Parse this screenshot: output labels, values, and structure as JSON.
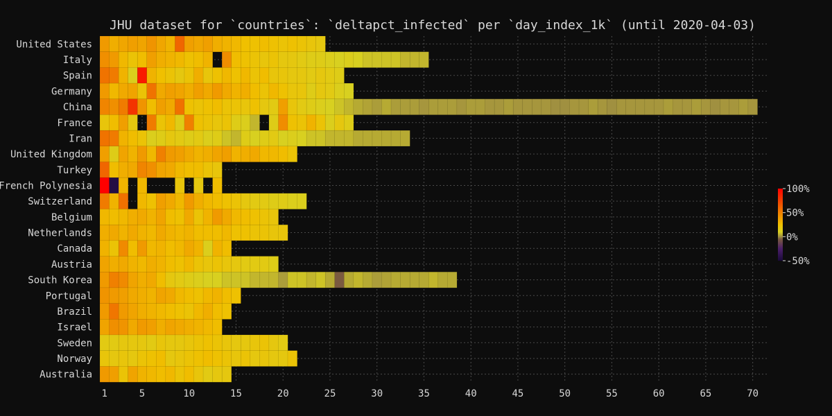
{
  "chart_data": {
    "type": "heatmap",
    "title": "JHU dataset for `countries`: `deltapct_infected` per `day_index_1k` (until 2020-04-03)",
    "xlabel": "",
    "ylabel": "",
    "x_range": [
      1,
      71
    ],
    "x_ticks": [
      "1",
      "5",
      "10",
      "15",
      "20",
      "25",
      "30",
      "35",
      "40",
      "45",
      "50",
      "55",
      "60",
      "65",
      "70"
    ],
    "grid": true,
    "colorbar": {
      "min": -50,
      "max": 100,
      "ticks": [
        "100%",
        "50%",
        "0%",
        "-50%"
      ],
      "tick_values": [
        100,
        50,
        0,
        -50
      ],
      "stops": [
        {
          "v": -50,
          "color": "#1a0a3a"
        },
        {
          "v": -25,
          "color": "#4b1f6a"
        },
        {
          "v": -5,
          "color": "#7a5a40"
        },
        {
          "v": 0,
          "color": "#a09040"
        },
        {
          "v": 10,
          "color": "#d8d020"
        },
        {
          "v": 25,
          "color": "#f0c000"
        },
        {
          "v": 50,
          "color": "#f08000"
        },
        {
          "v": 75,
          "color": "#f04000"
        },
        {
          "v": 100,
          "color": "#ff0000"
        }
      ]
    },
    "rows": [
      {
        "country": "United States",
        "values": [
          40,
          32,
          35,
          38,
          36,
          42,
          35,
          30,
          60,
          38,
          35,
          38,
          32,
          30,
          28,
          25,
          24,
          26,
          24,
          22,
          24,
          22,
          20,
          18
        ]
      },
      {
        "country": "Italy",
        "values": [
          44,
          40,
          28,
          22,
          26,
          38,
          32,
          30,
          28,
          24,
          26,
          30,
          null,
          45,
          26,
          24,
          22,
          20,
          22,
          18,
          18,
          16,
          14,
          14,
          12,
          10,
          12,
          10,
          8,
          8,
          8,
          8,
          6,
          6,
          6
        ]
      },
      {
        "country": "Spain",
        "values": [
          55,
          52,
          30,
          12,
          90,
          30,
          25,
          22,
          18,
          22,
          32,
          20,
          24,
          28,
          24,
          28,
          22,
          26,
          20,
          20,
          18,
          18,
          16,
          18,
          16,
          14
        ]
      },
      {
        "country": "Germany",
        "values": [
          40,
          28,
          34,
          36,
          22,
          55,
          34,
          38,
          36,
          32,
          38,
          34,
          40,
          34,
          30,
          32,
          26,
          22,
          28,
          24,
          20,
          20,
          14,
          18,
          16,
          12,
          10
        ]
      },
      {
        "country": "China",
        "values": [
          48,
          44,
          52,
          80,
          42,
          26,
          38,
          34,
          56,
          24,
          22,
          24,
          26,
          22,
          22,
          20,
          24,
          18,
          16,
          38,
          20,
          16,
          14,
          12,
          10,
          8,
          6,
          4,
          3,
          2,
          4,
          2,
          2,
          2,
          1,
          2,
          2,
          2,
          1,
          2,
          2,
          1,
          1,
          2,
          1,
          1,
          1,
          1,
          0,
          0,
          1,
          1,
          2,
          1,
          0,
          1,
          1,
          1,
          1,
          1,
          2,
          1,
          1,
          2,
          1,
          0,
          1,
          1,
          2,
          1
        ]
      },
      {
        "country": "France",
        "values": [
          20,
          26,
          38,
          18,
          null,
          52,
          22,
          28,
          14,
          50,
          24,
          22,
          20,
          22,
          14,
          12,
          6,
          null,
          14,
          45,
          24,
          22,
          30,
          22,
          12,
          18,
          14
        ]
      },
      {
        "country": "Iran",
        "values": [
          55,
          52,
          30,
          26,
          22,
          12,
          14,
          18,
          16,
          14,
          16,
          12,
          14,
          8,
          6,
          14,
          10,
          14,
          16,
          10,
          12,
          10,
          8,
          8,
          6,
          6,
          6,
          4,
          4,
          4,
          4,
          4,
          4
        ]
      },
      {
        "country": "United Kingdom",
        "values": [
          38,
          14,
          36,
          30,
          40,
          28,
          50,
          40,
          38,
          34,
          30,
          32,
          36,
          38,
          30,
          32,
          34,
          28,
          28,
          26,
          22
        ]
      },
      {
        "country": "Turkey",
        "values": [
          60,
          26,
          32,
          34,
          48,
          44,
          36,
          34,
          28,
          26,
          26,
          22,
          20
        ]
      },
      {
        "country": "French Polynesia",
        "values": [
          100,
          -45,
          30,
          null,
          28,
          null,
          null,
          null,
          20,
          null,
          18,
          null,
          26
        ]
      },
      {
        "country": "Switzerland",
        "values": [
          52,
          30,
          56,
          null,
          28,
          24,
          38,
          34,
          28,
          40,
          32,
          28,
          26,
          24,
          22,
          18,
          16,
          16,
          14,
          14,
          12,
          12
        ]
      },
      {
        "country": "Belgium",
        "values": [
          28,
          26,
          28,
          32,
          34,
          30,
          36,
          26,
          24,
          34,
          22,
          30,
          40,
          34,
          28,
          26,
          24,
          22,
          20
        ]
      },
      {
        "country": "Netherlands",
        "values": [
          32,
          34,
          30,
          34,
          30,
          28,
          34,
          30,
          28,
          30,
          26,
          26,
          26,
          28,
          24,
          24,
          22,
          22,
          20,
          20
        ]
      },
      {
        "country": "Canada",
        "values": [
          30,
          22,
          46,
          26,
          40,
          28,
          30,
          26,
          28,
          34,
          30,
          12,
          30,
          26
        ]
      },
      {
        "country": "Austria",
        "values": [
          36,
          32,
          34,
          30,
          28,
          32,
          30,
          26,
          24,
          28,
          22,
          20,
          22,
          20,
          18,
          16,
          16,
          16,
          14
        ]
      },
      {
        "country": "South Korea",
        "values": [
          40,
          50,
          46,
          36,
          32,
          34,
          26,
          18,
          16,
          14,
          12,
          10,
          10,
          8,
          8,
          8,
          6,
          6,
          6,
          2,
          8,
          8,
          6,
          8,
          4,
          -5,
          4,
          6,
          4,
          2,
          3,
          4,
          4,
          4,
          4,
          6,
          4,
          4
        ]
      },
      {
        "country": "Portugal",
        "values": [
          42,
          40,
          38,
          34,
          32,
          30,
          36,
          34,
          28,
          26,
          24,
          28,
          30,
          26,
          24
        ]
      },
      {
        "country": "Brazil",
        "values": [
          40,
          54,
          40,
          36,
          32,
          30,
          28,
          26,
          24,
          22,
          28,
          32,
          26,
          24
        ]
      },
      {
        "country": "Israel",
        "values": [
          36,
          44,
          42,
          34,
          40,
          38,
          32,
          36,
          34,
          32,
          30,
          28,
          26
        ]
      },
      {
        "country": "Sweden",
        "values": [
          16,
          16,
          18,
          18,
          18,
          16,
          20,
          18,
          18,
          20,
          22,
          24,
          22,
          20,
          18,
          18,
          20,
          22,
          18,
          16
        ]
      },
      {
        "country": "Norway",
        "values": [
          20,
          18,
          20,
          18,
          22,
          24,
          26,
          18,
          20,
          22,
          24,
          26,
          24,
          22,
          20,
          22,
          18,
          20,
          18,
          18,
          22
        ]
      },
      {
        "country": "Australia",
        "values": [
          40,
          38,
          22,
          36,
          30,
          28,
          26,
          28,
          22,
          26,
          20,
          16,
          18,
          18
        ]
      }
    ]
  }
}
